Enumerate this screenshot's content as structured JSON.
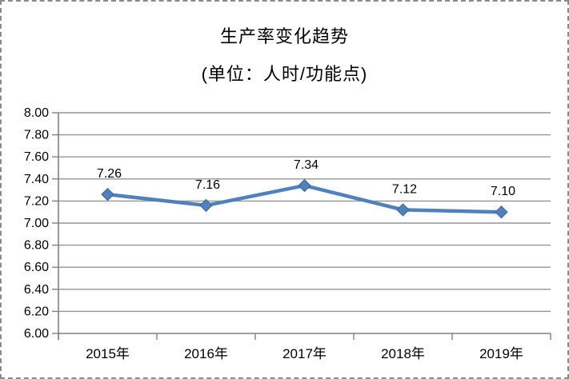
{
  "chart_object": {
    "selection_border_color": "#8a8a8a",
    "background": "#ffffff"
  },
  "chart_data": {
    "type": "line",
    "title": "生产率变化趋势",
    "subtitle": "(单位：人时/功能点)",
    "categories": [
      "2015年",
      "2016年",
      "2017年",
      "2018年",
      "2019年"
    ],
    "series": [
      {
        "values": [
          7.26,
          7.16,
          7.34,
          7.12,
          7.1
        ],
        "data_labels": [
          "7.26",
          "7.16",
          "7.34",
          "7.12",
          "7.10"
        ],
        "color": "#4F81BD",
        "marker": "diamond",
        "marker_edge_color": "#3d6591"
      }
    ],
    "ylim": [
      6.0,
      8.0
    ],
    "ytick_step": 0.2,
    "ytick_labels": [
      "8.00",
      "7.80",
      "7.60",
      "7.40",
      "7.20",
      "7.00",
      "6.80",
      "6.60",
      "6.40",
      "6.20",
      "6.00"
    ],
    "xlabel": "",
    "ylabel": "",
    "grid": true,
    "legend": "none",
    "colors": {
      "gridline": "#949494",
      "axis": "#808080",
      "text": "#000000"
    }
  }
}
